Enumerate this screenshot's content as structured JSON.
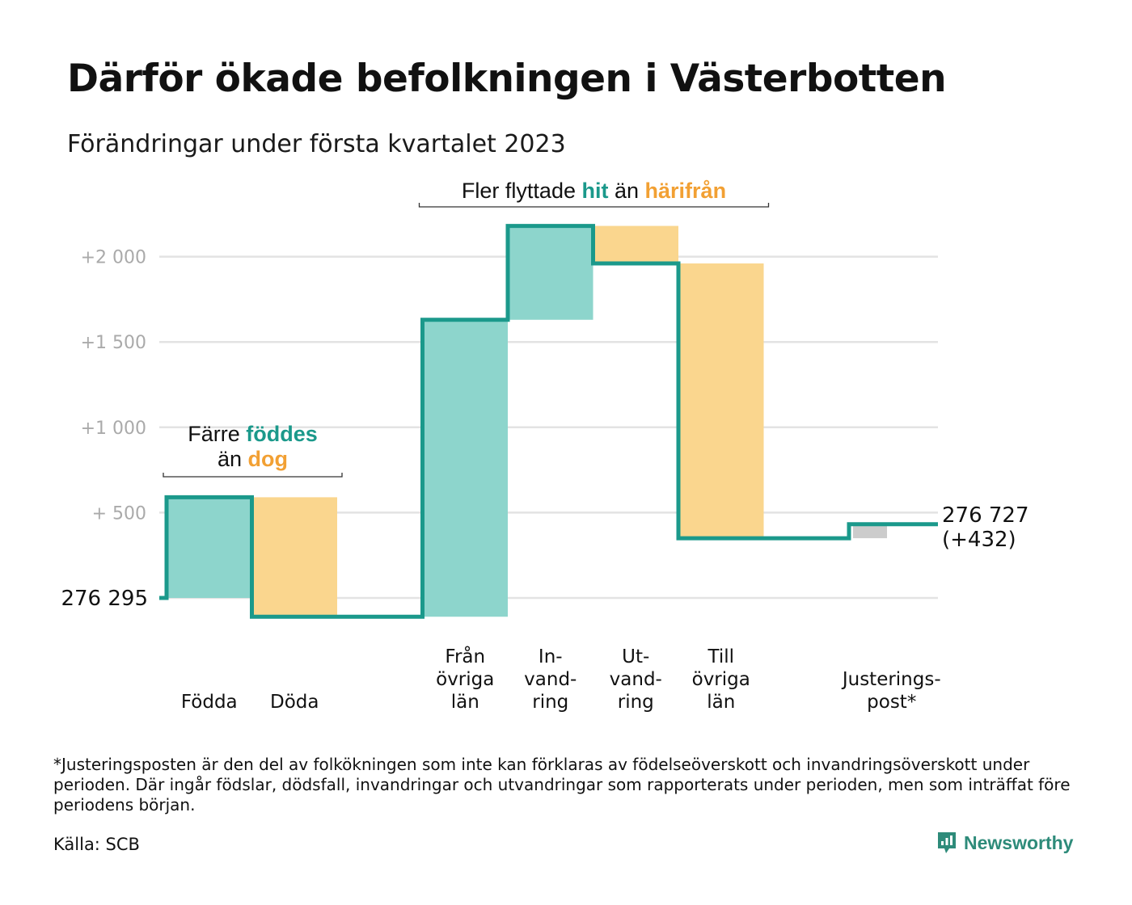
{
  "title": "Därför ökade befolkningen i Västerbotten",
  "subtitle": "Förändringar under första kvartalet 2023",
  "colors": {
    "increase": "#8dd5cc",
    "decrease": "#fad68e",
    "adjustment": "#cccccc",
    "line": "#1b998b",
    "grid": "#e3e3e3",
    "teal_text": "#1b998b",
    "orange_text": "#f2a033"
  },
  "chart_data": {
    "type": "waterfall",
    "start_value": 276295,
    "start_label": "276 295",
    "end_label": "276 727",
    "end_change_label": "(+432)",
    "ylim": [
      -150,
      2300
    ],
    "y_ticks": [
      {
        "value": 500,
        "label": "+ 500"
      },
      {
        "value": 1000,
        "label": "+1 000"
      },
      {
        "value": 1500,
        "label": "+1 500"
      },
      {
        "value": 2000,
        "label": "+2 000"
      }
    ],
    "grid_values": [
      0,
      500,
      1000,
      1500,
      2000
    ],
    "steps": [
      {
        "label": [
          "Födda"
        ],
        "change": 590,
        "kind": "increase"
      },
      {
        "label": [
          "Döda"
        ],
        "change": -700,
        "kind": "decrease"
      },
      {
        "label": [],
        "change": 0,
        "kind": "gap"
      },
      {
        "label": [
          "Från",
          "övriga",
          "län"
        ],
        "change": 1740,
        "kind": "increase"
      },
      {
        "label": [
          "In-",
          "vand-",
          "ring"
        ],
        "change": 550,
        "kind": "increase"
      },
      {
        "label": [
          "Ut-",
          "vand-",
          "ring"
        ],
        "change": -220,
        "kind": "decrease"
      },
      {
        "label": [
          "Till",
          "övriga",
          "län"
        ],
        "change": -1610,
        "kind": "decrease"
      },
      {
        "label": [],
        "change": 0,
        "kind": "gap"
      },
      {
        "label": [
          "Justerings-",
          "post*"
        ],
        "change": 82,
        "kind": "adjustment"
      }
    ],
    "annotations": [
      {
        "lines": [
          [
            {
              "text": "Färre ",
              "style": "plain"
            },
            {
              "text": "föddes",
              "style": "teal"
            }
          ],
          [
            {
              "text": "än ",
              "style": "plain"
            },
            {
              "text": "dog",
              "style": "orange"
            }
          ]
        ],
        "span": [
          0,
          1
        ]
      },
      {
        "lines": [
          [
            {
              "text": "Fler flyttade ",
              "style": "plain"
            },
            {
              "text": "hit",
              "style": "teal"
            },
            {
              "text": " än ",
              "style": "plain"
            },
            {
              "text": "härifrån",
              "style": "orange"
            }
          ]
        ],
        "span": [
          3,
          6
        ]
      }
    ]
  },
  "footnote": "*Justeringsposten är den del av folkökningen som inte kan förklaras av födelseöverskott och invandringsöverskott under perioden. Där ingår födslar, dödsfall, invandringar och utvandringar som rapporterats under perioden, men som inträffat före periodens början.",
  "source": "Källa: SCB",
  "logo": {
    "name": "Newsworthy",
    "icon": "newsworthy-chart-bubble-icon"
  }
}
